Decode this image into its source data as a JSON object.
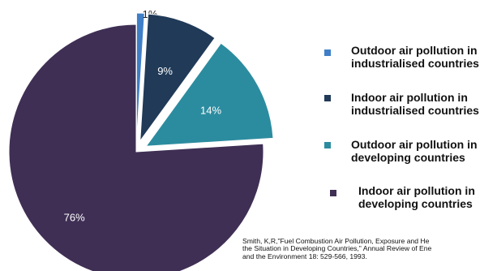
{
  "chart_data": {
    "type": "pie",
    "slices": [
      {
        "label": "Outdoor air pollution in industrialised countries",
        "value": 1,
        "data_label": "1%",
        "color": "#3f7fc7",
        "exploded": true
      },
      {
        "label": "Indoor air pollution in industrialised countries",
        "value": 9,
        "data_label": "9%",
        "color": "#203a58",
        "exploded": true
      },
      {
        "label": "Outdoor air pollution in developing countries",
        "value": 14,
        "data_label": "14%",
        "color": "#2c8c9f",
        "exploded": true
      },
      {
        "label": "Indoor air pollution in developing countries",
        "value": 76,
        "data_label": "76%",
        "color": "#3f2f54",
        "exploded": false
      }
    ],
    "legend": {
      "placement": "right",
      "items": [
        {
          "line1": "Outdoor air pollution in",
          "line2": "industrialised countries",
          "color": "#3f7fc7"
        },
        {
          "line1": "Indoor air pollution in",
          "line2": "industrialised countries",
          "color": "#203a58"
        },
        {
          "line1": "Outdoor air pollution in",
          "line2": "developing countries",
          "color": "#2c8c9f"
        },
        {
          "line1": "Indoor air pollution in",
          "line2": "developing countries",
          "color": "#3f2f54"
        }
      ]
    }
  },
  "citation": {
    "line1": "Smith, K,R,\"Fuel Combustion Air Pollution, Exposure and He",
    "line2": "the Situation in Developing Countries,\" Annual Review of Ene",
    "line3": "and the Environment 18: 529-566, 1993."
  }
}
